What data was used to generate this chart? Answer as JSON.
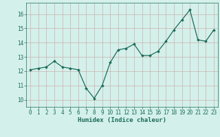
{
  "x": [
    0,
    1,
    2,
    3,
    4,
    5,
    6,
    7,
    8,
    9,
    10,
    11,
    12,
    13,
    14,
    15,
    16,
    17,
    18,
    19,
    20,
    21,
    22,
    23
  ],
  "y": [
    12.1,
    12.2,
    12.3,
    12.7,
    12.3,
    12.2,
    12.1,
    10.8,
    10.1,
    11.0,
    12.6,
    13.5,
    13.6,
    13.9,
    13.1,
    13.1,
    13.4,
    14.1,
    14.9,
    15.6,
    16.3,
    14.2,
    14.1,
    14.9
  ],
  "line_color": "#1a6b5a",
  "marker_color": "#1a6b5a",
  "bg_color": "#d4f0ea",
  "grid_color": "#c0ddd8",
  "xlabel": "Humidex (Indice chaleur)",
  "xlim": [
    -0.5,
    23.5
  ],
  "ylim": [
    9.5,
    16.8
  ],
  "yticks": [
    10,
    11,
    12,
    13,
    14,
    15,
    16
  ],
  "xticks": [
    0,
    1,
    2,
    3,
    4,
    5,
    6,
    7,
    8,
    9,
    10,
    11,
    12,
    13,
    14,
    15,
    16,
    17,
    18,
    19,
    20,
    21,
    22,
    23
  ],
  "tick_fontsize": 5.5,
  "xlabel_fontsize": 6.5,
  "marker_size": 2.0,
  "line_width": 0.9
}
